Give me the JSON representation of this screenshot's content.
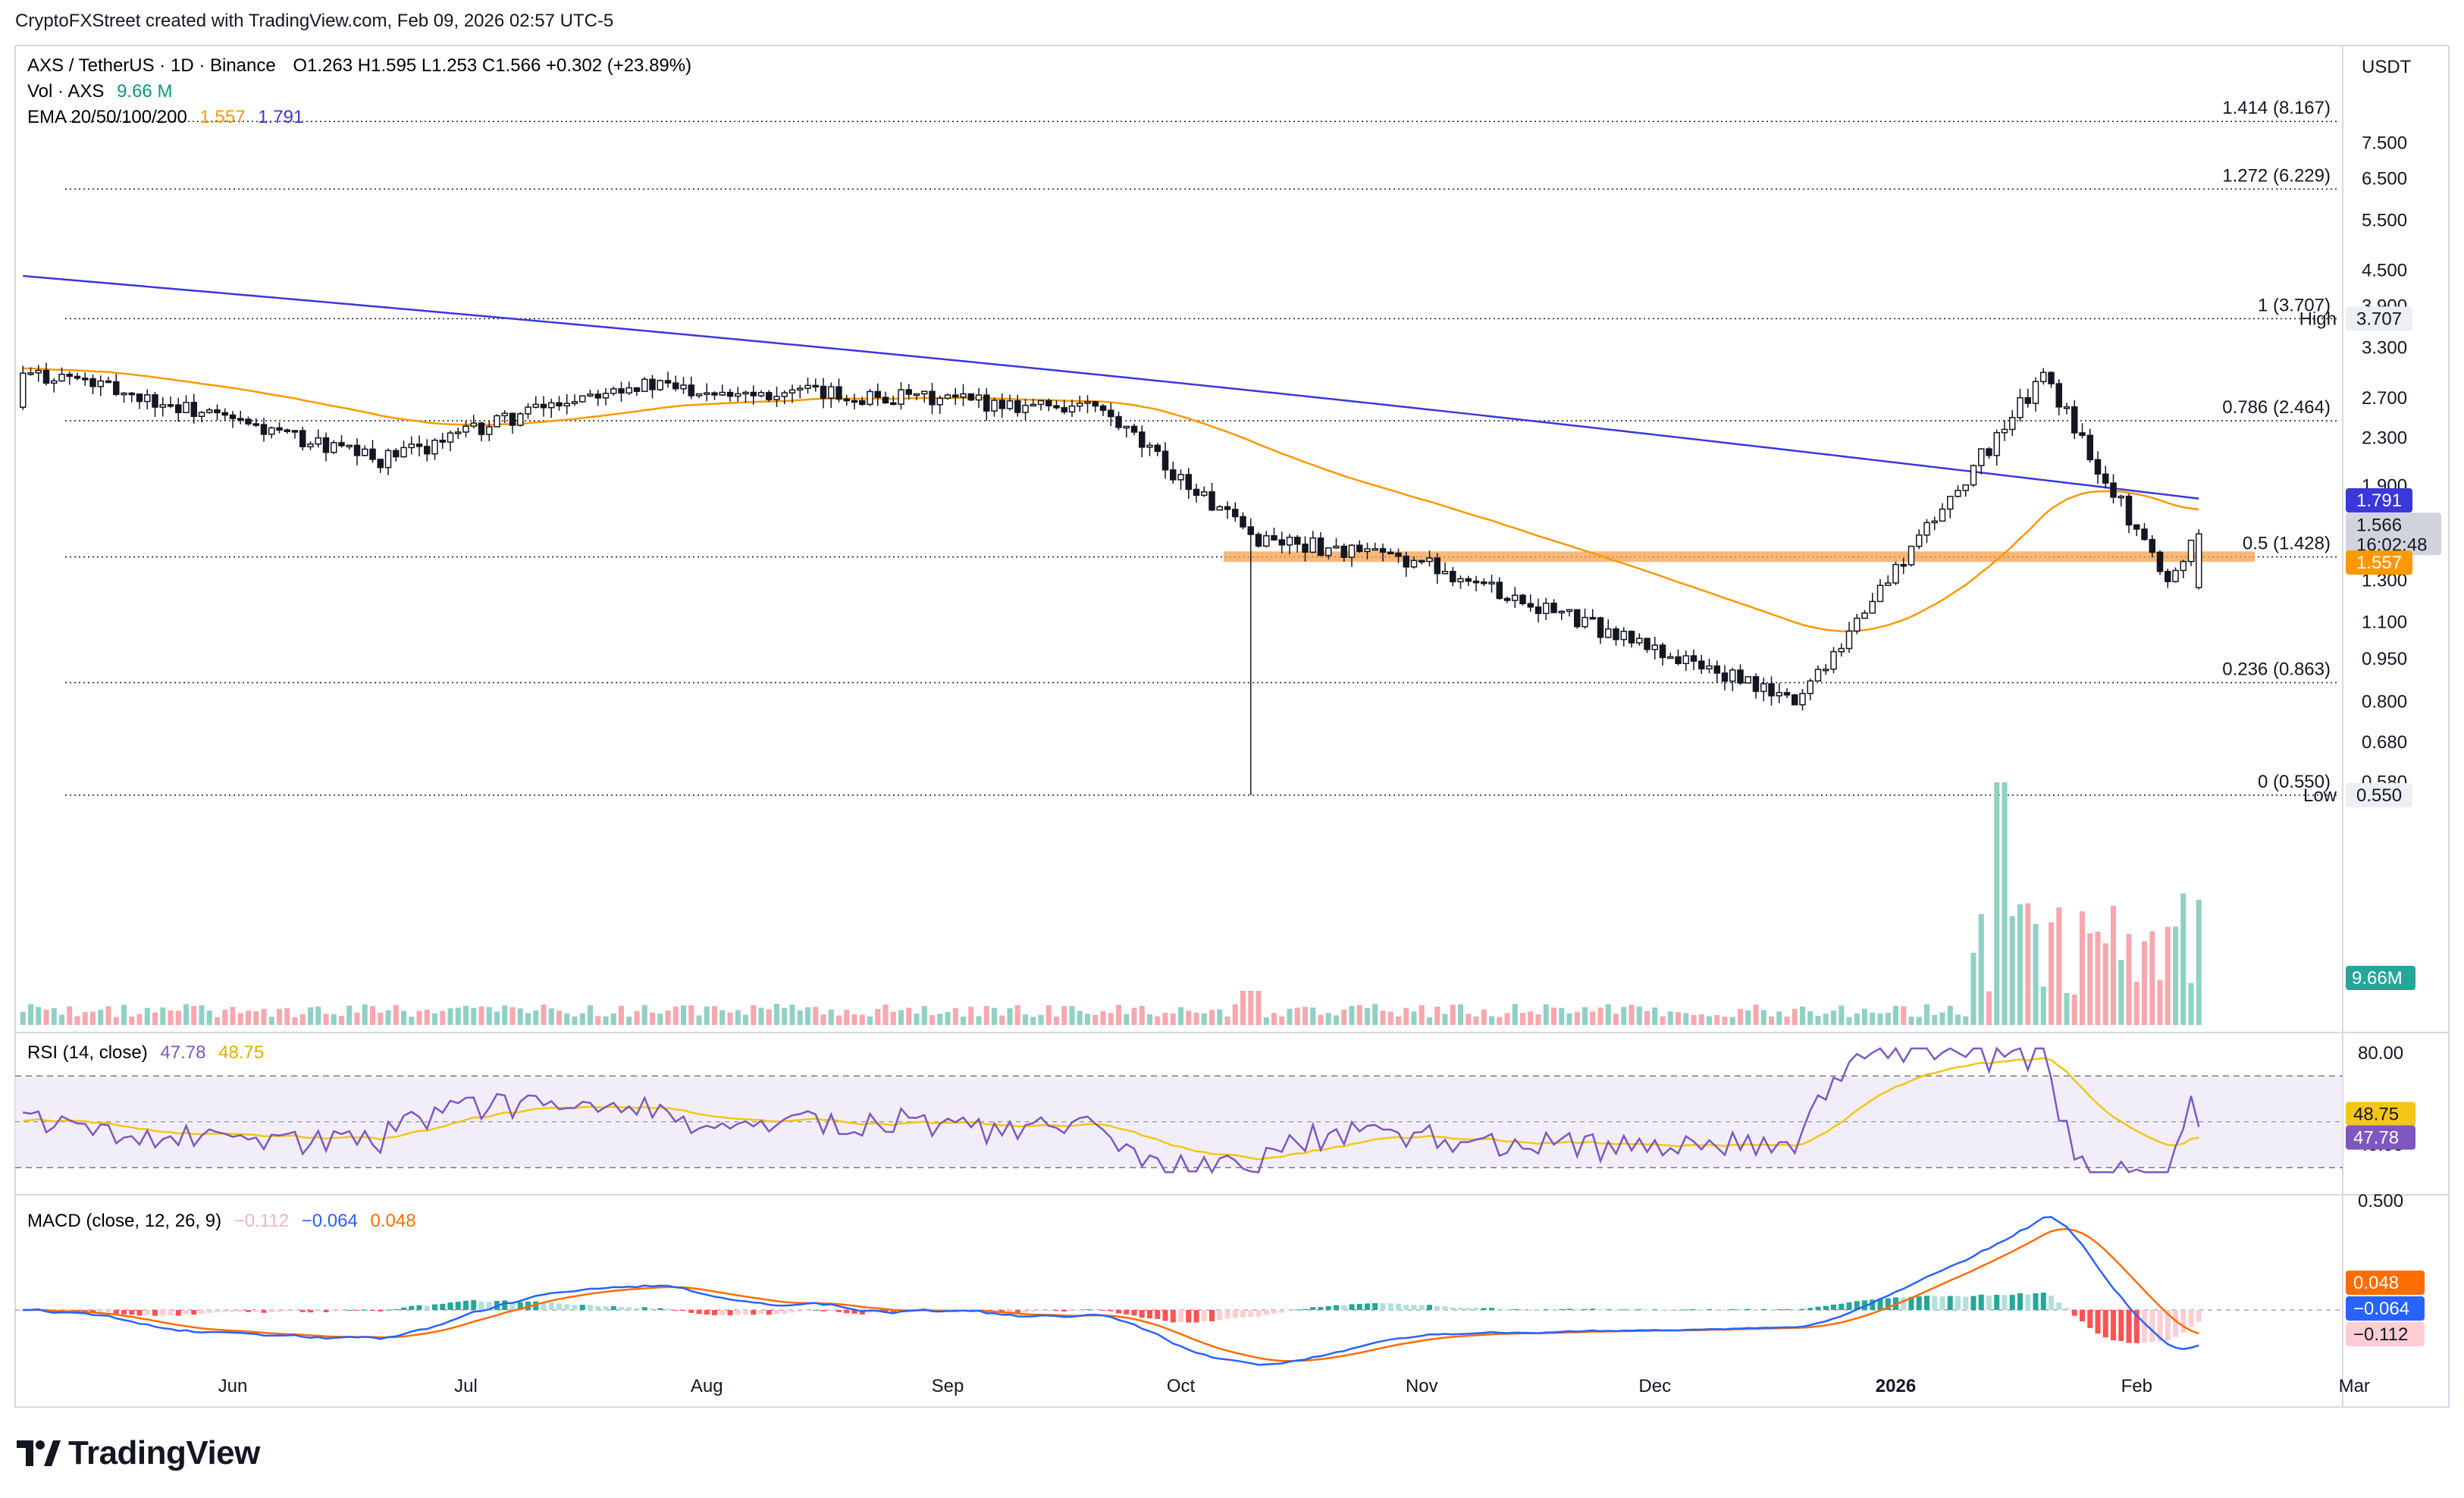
{
  "header": {
    "credit": "CryptoFXStreet created with TradingView.com, Feb 09, 2026 02:57 UTC-5"
  },
  "legend": {
    "symbol": "AXS / TetherUS · 1D · Binance",
    "ohlc": "O1.263  H1.595  L1.253  C1.566  +0.302 (+23.89%)",
    "vol_label": "Vol · AXS",
    "vol_value": "9.66 M",
    "ema_label": "EMA 20/50/100/200",
    "ema_a": "1.557",
    "ema_b": "1.791",
    "rsi_label": "RSI (14, close)",
    "rsi_a": "47.78",
    "rsi_b": "48.75",
    "macd_label": "MACD (close, 12, 26, 9)",
    "macd_h": "−0.112",
    "macd_m": "−0.064",
    "macd_s": "0.048"
  },
  "branding": {
    "logo_text": "TradingView"
  },
  "colors": {
    "up": "#089981",
    "down": "#f23645",
    "ema_short": "#ff9800",
    "ema_long": "#3b37d9",
    "rsi": "#7e57c2",
    "rsi_ma": "#f5c518",
    "macd": "#2962ff",
    "signal": "#ff6d00",
    "zone": "#f5a04a",
    "grid": "#eef0f3"
  },
  "chart_data": {
    "type": "candlestick",
    "scale": "log",
    "currency": "USDT",
    "price_ticks": [
      "7.500",
      "6.500",
      "5.500",
      "4.500",
      "3.900",
      "3.300",
      "2.700",
      "2.300",
      "1.900",
      "1.300",
      "1.100",
      "0.950",
      "0.800",
      "0.680",
      "0.580"
    ],
    "x_labels": [
      "Jun",
      "Jul",
      "Aug",
      "Sep",
      "Oct",
      "Nov",
      "Dec",
      "2026",
      "Feb",
      "Mar"
    ],
    "fib_levels": [
      {
        "label": "1.414 (8.167)",
        "value": 8.167
      },
      {
        "label": "1.272 (6.229)",
        "value": 6.229
      },
      {
        "label": "1 (3.707)",
        "value": 3.707
      },
      {
        "label": "0.786 (2.464)",
        "value": 2.464
      },
      {
        "label": "0.5 (1.428)",
        "value": 1.428
      },
      {
        "label": "0.236 (0.863)",
        "value": 0.863
      },
      {
        "label": "0 (0.550)",
        "value": 0.55
      }
    ],
    "support_zone": {
      "low": 1.4,
      "high": 1.46
    },
    "price_badges": {
      "high_label": "High",
      "high": "3.707",
      "low_label": "Low",
      "low": "0.550",
      "ema200": "1.791",
      "last": "1.566",
      "countdown": "16:02:48",
      "ema50": "1.557",
      "volume": "9.66M"
    },
    "key_closes": [
      {
        "date": "2025-05-10",
        "close": 2.95
      },
      {
        "date": "2025-06-20",
        "close": 2.1
      },
      {
        "date": "2025-07-20",
        "close": 2.85
      },
      {
        "date": "2025-09-20",
        "close": 2.6
      },
      {
        "date": "2025-10-10",
        "close": 1.55,
        "low": 0.55
      },
      {
        "date": "2025-11-01",
        "close": 1.4
      },
      {
        "date": "2025-12-19",
        "close": 0.8
      },
      {
        "date": "2026-01-20",
        "close": 2.95
      },
      {
        "date": "2026-02-05",
        "close": 1.3
      },
      {
        "date": "2026-02-09",
        "close": 1.566
      }
    ],
    "rsi": {
      "ticks": [
        "80.00",
        "40.00"
      ],
      "value": "47.78",
      "ma": "48.75",
      "upper": 70,
      "lower": 30
    },
    "macd": {
      "ticks": [
        "0.500"
      ],
      "macd": "−0.064",
      "signal": "0.048",
      "histogram": "−0.112"
    }
  }
}
